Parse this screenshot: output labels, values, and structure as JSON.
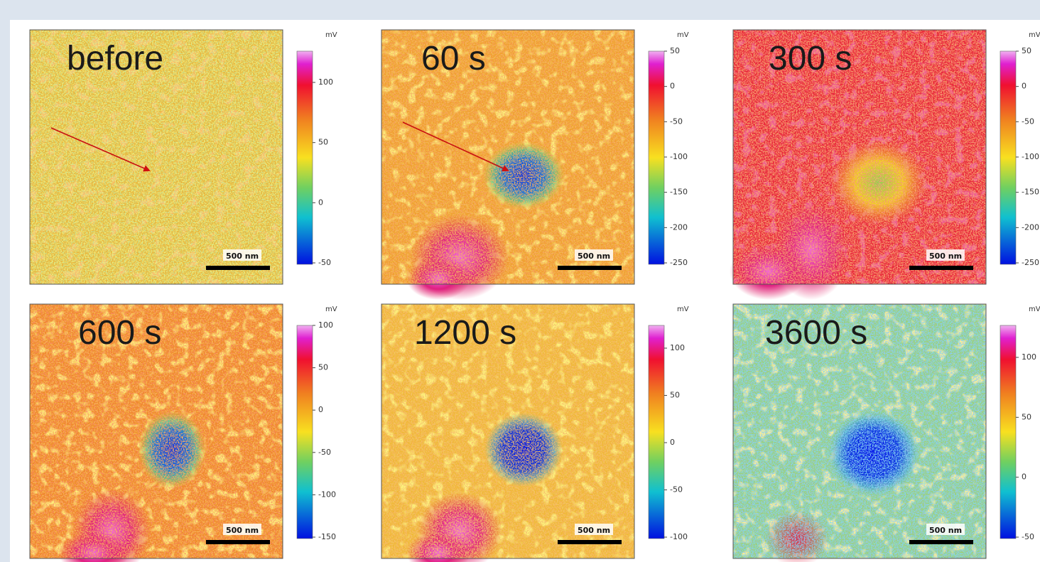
{
  "panels": [
    {
      "label": "before",
      "colorbar": {
        "unit": "mV",
        "ticks": [
          "100",
          "50",
          "0",
          "-50"
        ]
      },
      "scale_bar": "500 nm"
    },
    {
      "label": "60 s",
      "colorbar": {
        "unit": "mV",
        "ticks": [
          "50",
          "0",
          "-50",
          "-100",
          "-150",
          "-200",
          "-250"
        ]
      },
      "scale_bar": "500 nm"
    },
    {
      "label": "300 s",
      "colorbar": {
        "unit": "mV",
        "ticks": [
          "50",
          "0",
          "-50",
          "-100",
          "-150",
          "-200",
          "-250"
        ]
      },
      "scale_bar": "500 nm"
    },
    {
      "label": "600 s",
      "colorbar": {
        "unit": "mV",
        "ticks": [
          "100",
          "50",
          "0",
          "-50",
          "-100",
          "-150"
        ]
      },
      "scale_bar": "500 nm"
    },
    {
      "label": "1200 s",
      "colorbar": {
        "unit": "mV",
        "ticks": [
          "100",
          "50",
          "0",
          "-50",
          "-100"
        ]
      },
      "scale_bar": "500 nm"
    },
    {
      "label": "3600 s",
      "colorbar": {
        "unit": "mV",
        "ticks": [
          "100",
          "50",
          "0",
          "-50"
        ]
      },
      "scale_bar": "500 nm"
    }
  ]
}
